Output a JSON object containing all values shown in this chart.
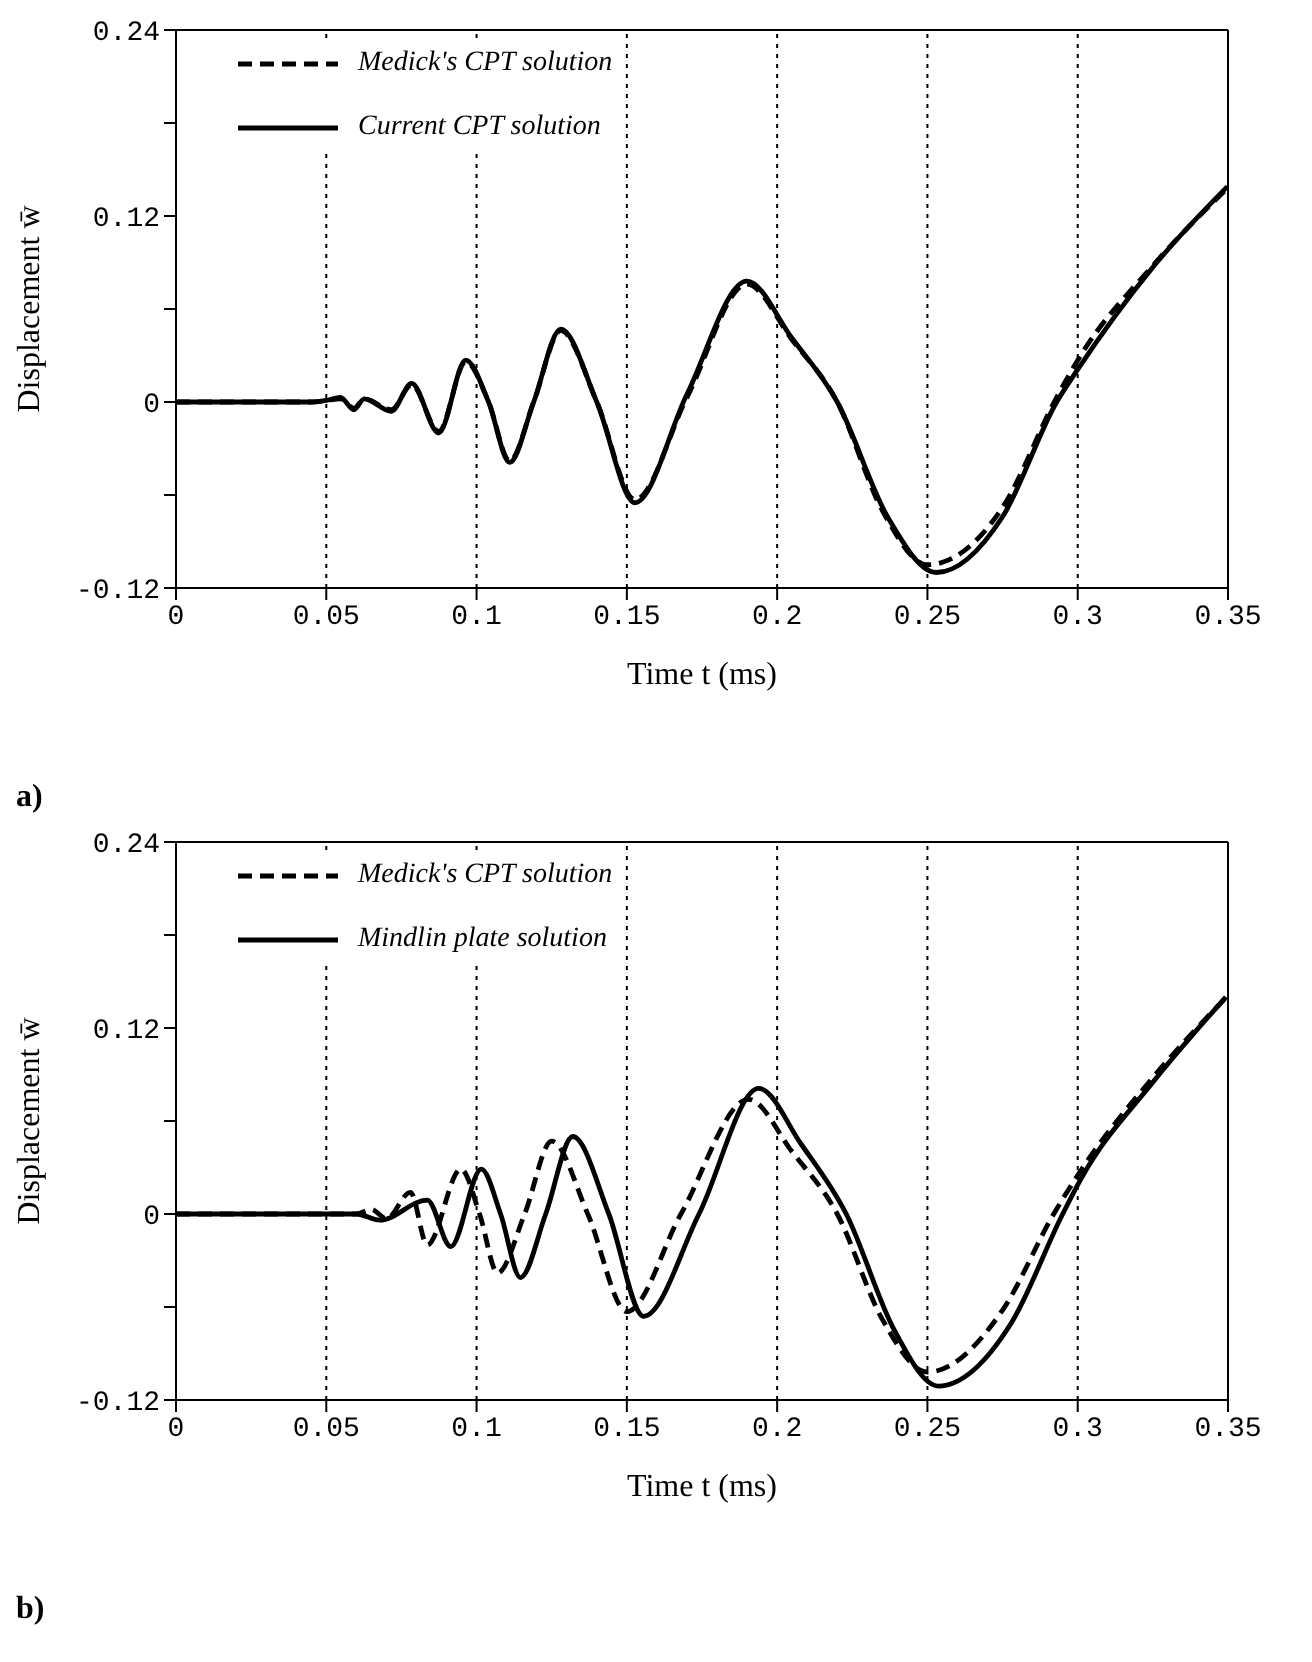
{
  "chart_data": [
    {
      "type": "line",
      "xlabel": "Time t (ms)",
      "ylabel": "Displacement w̄",
      "annotations": [
        "a)"
      ],
      "legend": "top left",
      "xlim": [
        0,
        0.35
      ],
      "ylim": [
        -0.12,
        0.24
      ],
      "xticks": [
        0,
        0.05,
        0.1,
        0.15,
        0.2,
        0.25,
        0.3,
        0.35
      ],
      "yticks": [
        -0.12,
        {
          "value": -0.06,
          "label": null
        },
        0,
        {
          "value": 0.06,
          "label": null
        },
        0.12,
        {
          "value": 0.18,
          "label": null
        },
        0.24
      ],
      "ref_lines": [
        {
          "axis": "x",
          "value": 0.05,
          "line_style": "dotted"
        },
        {
          "axis": "x",
          "value": 0.1,
          "line_style": "dotted"
        },
        {
          "axis": "x",
          "value": 0.15,
          "line_style": "dotted"
        },
        {
          "axis": "x",
          "value": 0.2,
          "line_style": "dotted"
        },
        {
          "axis": "x",
          "value": 0.25,
          "line_style": "dotted"
        },
        {
          "axis": "x",
          "value": 0.3,
          "line_style": "dotted"
        }
      ],
      "series": [
        {
          "name": "Medick's CPT solution",
          "color": "#000000",
          "line_style": "dashed",
          "x": [
            0,
            0.02,
            0.045,
            0.05,
            0.0547,
            0.0592,
            0.0626,
            0.0716,
            0.0784,
            0.0874,
            0.0964,
            0.104,
            0.111,
            0.119,
            0.128,
            0.14,
            0.1527,
            0.17,
            0.1899,
            0.205,
            0.22,
            0.235,
            0.25,
            0.275,
            0.293,
            0.3,
            0.325,
            0.3498
          ],
          "values": [
            0,
            0,
            0,
            0.001,
            0.002,
            -0.004,
            0.002,
            -0.005,
            0.011,
            -0.019,
            0.026,
            0,
            -0.038,
            0,
            0.046,
            0,
            -0.063,
            0.003,
            0.076,
            0.04,
            0,
            -0.07,
            -0.105,
            -0.068,
            0.003,
            0.027,
            0.088,
            0.138
          ]
        },
        {
          "name": "Current CPT solution",
          "color": "#000000",
          "line_style": "solid",
          "x": [
            0,
            0.02,
            0.045,
            0.05,
            0.0547,
            0.0592,
            0.0626,
            0.0716,
            0.0784,
            0.0874,
            0.0964,
            0.104,
            0.111,
            0.119,
            0.128,
            0.14,
            0.1527,
            0.17,
            0.1899,
            0.205,
            0.22,
            0.237,
            0.2529,
            0.275,
            0.293,
            0.3,
            0.325,
            0.3498
          ],
          "values": [
            0,
            0,
            0,
            0.001,
            0.003,
            -0.005,
            0.002,
            -0.006,
            0.012,
            -0.02,
            0.027,
            0,
            -0.039,
            0,
            0.047,
            0,
            -0.065,
            0.005,
            0.078,
            0.041,
            0,
            -0.075,
            -0.11,
            -0.074,
            0,
            0.021,
            0.087,
            0.139
          ]
        }
      ]
    },
    {
      "type": "line",
      "xlabel": "Time t (ms)",
      "ylabel": "Displacement w̄",
      "annotations": [
        "b)"
      ],
      "legend": "top left",
      "xlim": [
        0,
        0.35
      ],
      "ylim": [
        -0.12,
        0.24
      ],
      "xticks": [
        0,
        0.05,
        0.1,
        0.15,
        0.2,
        0.25,
        0.3,
        0.35
      ],
      "yticks": [
        -0.12,
        {
          "value": -0.06,
          "label": null
        },
        0,
        {
          "value": 0.06,
          "label": null
        },
        0.12,
        {
          "value": 0.18,
          "label": null
        },
        0.24
      ],
      "ref_lines": [
        {
          "axis": "x",
          "value": 0.05,
          "line_style": "dotted"
        },
        {
          "axis": "x",
          "value": 0.1,
          "line_style": "dotted"
        },
        {
          "axis": "x",
          "value": 0.15,
          "line_style": "dotted"
        },
        {
          "axis": "x",
          "value": 0.2,
          "line_style": "dotted"
        },
        {
          "axis": "x",
          "value": 0.25,
          "line_style": "dotted"
        },
        {
          "axis": "x",
          "value": 0.3,
          "line_style": "dotted"
        }
      ],
      "series": [
        {
          "name": "Medick's CPT solution",
          "color": "#000000",
          "line_style": "dashed",
          "x": [
            0,
            0.03,
            0.06,
            0.065,
            0.07,
            0.078,
            0.0836,
            0.0948,
            0.101,
            0.107,
            0.116,
            0.125,
            0.137,
            0.15,
            0.168,
            0.1905,
            0.205,
            0.22,
            0.235,
            0.25,
            0.275,
            0.292,
            0.3,
            0.325,
            0.349
          ],
          "values": [
            0,
            0,
            0,
            0.003,
            -0.003,
            0.014,
            -0.02,
            0.029,
            0,
            -0.038,
            0,
            0.047,
            0,
            -0.063,
            0,
            0.074,
            0.04,
            0,
            -0.068,
            -0.102,
            -0.062,
            0,
            0.025,
            0.088,
            0.139
          ]
        },
        {
          "name": "Mindlin plate solution",
          "color": "#000000",
          "line_style": "solid",
          "x": [
            0,
            0.03,
            0.06,
            0.0678,
            0.0836,
            0.0914,
            0.1016,
            0.108,
            0.1146,
            0.123,
            0.132,
            0.144,
            0.1556,
            0.174,
            0.1939,
            0.208,
            0.223,
            0.239,
            0.2536,
            0.278,
            0.295,
            0.3009,
            0.325,
            0.3493
          ],
          "values": [
            0,
            0,
            0,
            -0.004,
            0.009,
            -0.021,
            0.029,
            0,
            -0.041,
            0,
            0.05,
            0,
            -0.066,
            0,
            0.081,
            0.045,
            0,
            -0.075,
            -0.111,
            -0.07,
            0,
            0.022,
            0.085,
            0.14
          ]
        }
      ]
    }
  ]
}
